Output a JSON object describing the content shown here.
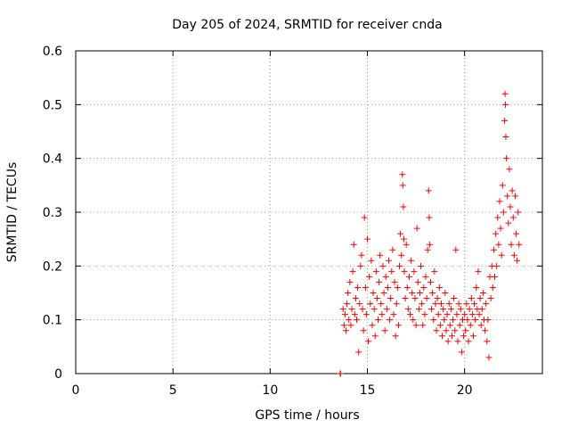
{
  "chart_data": {
    "type": "scatter",
    "title": "Day 205 of 2024, SRMTID for receiver cnda",
    "xlabel": "GPS time / hours",
    "ylabel": "SRMTID / TECUs",
    "xlim": [
      0,
      24
    ],
    "ylim": [
      0,
      0.6
    ],
    "xticks": [
      0,
      5,
      10,
      15,
      20
    ],
    "xtick_labels": [
      "0",
      "5",
      "10",
      "15",
      "20"
    ],
    "yticks": [
      0,
      0.1,
      0.2,
      0.3,
      0.4,
      0.5,
      0.6
    ],
    "ytick_labels": [
      "0",
      "0.1",
      "0.2",
      "0.3",
      "0.4",
      "0.5",
      "0.6"
    ],
    "grid": true,
    "marker": "plus",
    "color": "#ff0000",
    "series": [
      {
        "name": "SRMTID",
        "points": [
          [
            13.6,
            0.0
          ],
          [
            13.62,
            0.0
          ],
          [
            13.75,
            0.12
          ],
          [
            13.8,
            0.09
          ],
          [
            13.85,
            0.11
          ],
          [
            13.9,
            0.08
          ],
          [
            13.95,
            0.13
          ],
          [
            14.0,
            0.15
          ],
          [
            14.05,
            0.1
          ],
          [
            14.1,
            0.17
          ],
          [
            14.15,
            0.09
          ],
          [
            14.2,
            0.12
          ],
          [
            14.25,
            0.19
          ],
          [
            14.3,
            0.24
          ],
          [
            14.35,
            0.11
          ],
          [
            14.4,
            0.14
          ],
          [
            14.45,
            0.1
          ],
          [
            14.5,
            0.16
          ],
          [
            14.55,
            0.04
          ],
          [
            14.6,
            0.13
          ],
          [
            14.65,
            0.2
          ],
          [
            14.7,
            0.22
          ],
          [
            14.75,
            0.12
          ],
          [
            14.8,
            0.08
          ],
          [
            14.85,
            0.29
          ],
          [
            14.9,
            0.16
          ],
          [
            14.95,
            0.11
          ],
          [
            15.0,
            0.25
          ],
          [
            15.05,
            0.06
          ],
          [
            15.1,
            0.18
          ],
          [
            15.15,
            0.13
          ],
          [
            15.2,
            0.21
          ],
          [
            15.25,
            0.09
          ],
          [
            15.3,
            0.15
          ],
          [
            15.35,
            0.12
          ],
          [
            15.4,
            0.07
          ],
          [
            15.45,
            0.19
          ],
          [
            15.5,
            0.14
          ],
          [
            15.55,
            0.1
          ],
          [
            15.6,
            0.17
          ],
          [
            15.65,
            0.22
          ],
          [
            15.7,
            0.13
          ],
          [
            15.75,
            0.11
          ],
          [
            15.8,
            0.2
          ],
          [
            15.85,
            0.15
          ],
          [
            15.9,
            0.08
          ],
          [
            15.95,
            0.18
          ],
          [
            16.0,
            0.12
          ],
          [
            16.05,
            0.16
          ],
          [
            16.1,
            0.21
          ],
          [
            16.15,
            0.1
          ],
          [
            16.2,
            0.14
          ],
          [
            16.25,
            0.19
          ],
          [
            16.3,
            0.23
          ],
          [
            16.35,
            0.11
          ],
          [
            16.4,
            0.17
          ],
          [
            16.45,
            0.07
          ],
          [
            16.5,
            0.13
          ],
          [
            16.55,
            0.16
          ],
          [
            16.6,
            0.09
          ],
          [
            16.65,
            0.2
          ],
          [
            16.7,
            0.26
          ],
          [
            16.75,
            0.22
          ],
          [
            16.8,
            0.37
          ],
          [
            16.82,
            0.35
          ],
          [
            16.85,
            0.31
          ],
          [
            16.88,
            0.25
          ],
          [
            16.9,
            0.19
          ],
          [
            16.95,
            0.14
          ],
          [
            17.0,
            0.24
          ],
          [
            17.05,
            0.16
          ],
          [
            17.1,
            0.12
          ],
          [
            17.15,
            0.18
          ],
          [
            17.2,
            0.11
          ],
          [
            17.25,
            0.21
          ],
          [
            17.3,
            0.15
          ],
          [
            17.35,
            0.1
          ],
          [
            17.4,
            0.19
          ],
          [
            17.45,
            0.14
          ],
          [
            17.5,
            0.09
          ],
          [
            17.55,
            0.27
          ],
          [
            17.6,
            0.17
          ],
          [
            17.65,
            0.12
          ],
          [
            17.7,
            0.15
          ],
          [
            17.75,
            0.2
          ],
          [
            17.8,
            0.13
          ],
          [
            17.85,
            0.09
          ],
          [
            17.9,
            0.16
          ],
          [
            17.95,
            0.11
          ],
          [
            18.0,
            0.18
          ],
          [
            18.05,
            0.14
          ],
          [
            18.1,
            0.23
          ],
          [
            18.15,
            0.34
          ],
          [
            18.18,
            0.29
          ],
          [
            18.2,
            0.24
          ],
          [
            18.25,
            0.17
          ],
          [
            18.3,
            0.12
          ],
          [
            18.35,
            0.15
          ],
          [
            18.4,
            0.1
          ],
          [
            18.45,
            0.19
          ],
          [
            18.5,
            0.13
          ],
          [
            18.55,
            0.08
          ],
          [
            18.6,
            0.14
          ],
          [
            18.65,
            0.11
          ],
          [
            18.7,
            0.16
          ],
          [
            18.75,
            0.09
          ],
          [
            18.8,
            0.13
          ],
          [
            18.85,
            0.07
          ],
          [
            18.9,
            0.12
          ],
          [
            18.95,
            0.1
          ],
          [
            19.0,
            0.15
          ],
          [
            19.05,
            0.08
          ],
          [
            19.1,
            0.11
          ],
          [
            19.15,
            0.06
          ],
          [
            19.2,
            0.13
          ],
          [
            19.25,
            0.09
          ],
          [
            19.3,
            0.12
          ],
          [
            19.35,
            0.07
          ],
          [
            19.4,
            0.1
          ],
          [
            19.45,
            0.14
          ],
          [
            19.5,
            0.08
          ],
          [
            19.55,
            0.23
          ],
          [
            19.6,
            0.11
          ],
          [
            19.65,
            0.06
          ],
          [
            19.7,
            0.13
          ],
          [
            19.75,
            0.09
          ],
          [
            19.8,
            0.12
          ],
          [
            19.85,
            0.04
          ],
          [
            19.9,
            0.1
          ],
          [
            19.95,
            0.07
          ],
          [
            20.0,
            0.11
          ],
          [
            20.05,
            0.08
          ],
          [
            20.1,
            0.13
          ],
          [
            20.15,
            0.1
          ],
          [
            20.2,
            0.06
          ],
          [
            20.25,
            0.12
          ],
          [
            20.3,
            0.09
          ],
          [
            20.35,
            0.14
          ],
          [
            20.4,
            0.11
          ],
          [
            20.45,
            0.07
          ],
          [
            20.5,
            0.13
          ],
          [
            20.55,
            0.1
          ],
          [
            20.6,
            0.16
          ],
          [
            20.65,
            0.12
          ],
          [
            20.7,
            0.19
          ],
          [
            20.75,
            0.11
          ],
          [
            20.8,
            0.14
          ],
          [
            20.85,
            0.09
          ],
          [
            20.9,
            0.12
          ],
          [
            20.95,
            0.15
          ],
          [
            21.0,
            0.1
          ],
          [
            21.05,
            0.08
          ],
          [
            21.1,
            0.13
          ],
          [
            21.15,
            0.06
          ],
          [
            21.2,
            0.1
          ],
          [
            21.25,
            0.03
          ],
          [
            21.3,
            0.18
          ],
          [
            21.35,
            0.14
          ],
          [
            21.4,
            0.2
          ],
          [
            21.45,
            0.16
          ],
          [
            21.5,
            0.23
          ],
          [
            21.55,
            0.18
          ],
          [
            21.6,
            0.26
          ],
          [
            21.65,
            0.2
          ],
          [
            21.7,
            0.29
          ],
          [
            21.75,
            0.24
          ],
          [
            21.8,
            0.32
          ],
          [
            21.85,
            0.27
          ],
          [
            21.9,
            0.22
          ],
          [
            21.95,
            0.35
          ],
          [
            22.0,
            0.3
          ],
          [
            22.05,
            0.47
          ],
          [
            22.08,
            0.52
          ],
          [
            22.1,
            0.5
          ],
          [
            22.12,
            0.44
          ],
          [
            22.15,
            0.4
          ],
          [
            22.2,
            0.33
          ],
          [
            22.25,
            0.28
          ],
          [
            22.3,
            0.38
          ],
          [
            22.35,
            0.31
          ],
          [
            22.4,
            0.24
          ],
          [
            22.45,
            0.34
          ],
          [
            22.5,
            0.29
          ],
          [
            22.55,
            0.22
          ],
          [
            22.6,
            0.33
          ],
          [
            22.65,
            0.26
          ],
          [
            22.7,
            0.21
          ],
          [
            22.75,
            0.3
          ],
          [
            22.8,
            0.24
          ]
        ]
      }
    ]
  }
}
